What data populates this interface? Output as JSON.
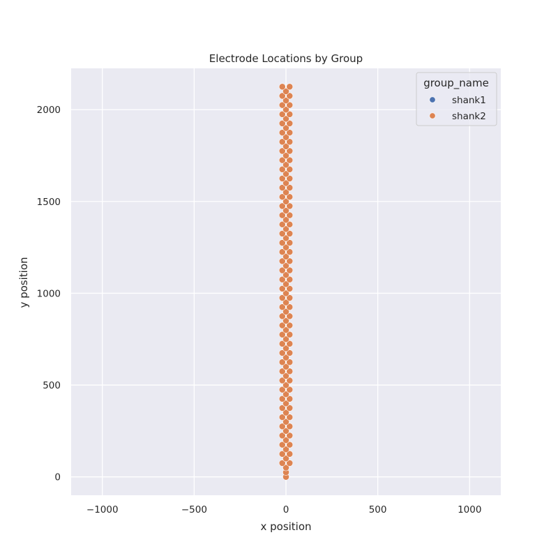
{
  "chart_data": {
    "type": "scatter",
    "title": "Electrode Locations by Group",
    "xlabel": "x position",
    "ylabel": "y position",
    "xlim": [
      -1170,
      1170
    ],
    "ylim": [
      -100,
      2225
    ],
    "xticks": [
      -1000,
      -500,
      0,
      500,
      1000
    ],
    "xtick_labels": [
      "−1000",
      "−500",
      "0",
      "500",
      "1000"
    ],
    "yticks": [
      0,
      500,
      1000,
      1500,
      2000
    ],
    "ytick_labels": [
      "0",
      "500",
      "1000",
      "1500",
      "2000"
    ],
    "grid": true,
    "background": "#eaeaf2",
    "legend": {
      "title": "group_name",
      "placement": "top-right",
      "entries": [
        {
          "label": "shank1",
          "color": "#4c72b0"
        },
        {
          "label": "shank2",
          "color": "#dd8452"
        }
      ]
    },
    "series": [
      {
        "name": "shank1",
        "color": "#4c72b0",
        "points": []
      },
      {
        "name": "shank2",
        "color": "#dd8452",
        "points": [
          [
            0,
            0
          ],
          [
            0,
            25
          ],
          [
            0,
            50
          ],
          [
            -20,
            75
          ],
          [
            20,
            75
          ],
          [
            0,
            100
          ],
          [
            -20,
            125
          ],
          [
            20,
            125
          ],
          [
            0,
            150
          ],
          [
            -20,
            175
          ],
          [
            20,
            175
          ],
          [
            0,
            200
          ],
          [
            -20,
            225
          ],
          [
            20,
            225
          ],
          [
            0,
            250
          ],
          [
            -20,
            275
          ],
          [
            20,
            275
          ],
          [
            0,
            300
          ],
          [
            -20,
            325
          ],
          [
            20,
            325
          ],
          [
            0,
            350
          ],
          [
            -20,
            375
          ],
          [
            20,
            375
          ],
          [
            0,
            400
          ],
          [
            -20,
            425
          ],
          [
            20,
            425
          ],
          [
            0,
            450
          ],
          [
            -20,
            475
          ],
          [
            20,
            475
          ],
          [
            0,
            500
          ],
          [
            -20,
            525
          ],
          [
            20,
            525
          ],
          [
            0,
            550
          ],
          [
            -20,
            575
          ],
          [
            20,
            575
          ],
          [
            0,
            600
          ],
          [
            -20,
            625
          ],
          [
            20,
            625
          ],
          [
            0,
            650
          ],
          [
            -20,
            675
          ],
          [
            20,
            675
          ],
          [
            0,
            700
          ],
          [
            -20,
            725
          ],
          [
            20,
            725
          ],
          [
            0,
            750
          ],
          [
            -20,
            775
          ],
          [
            20,
            775
          ],
          [
            0,
            800
          ],
          [
            -20,
            825
          ],
          [
            20,
            825
          ],
          [
            0,
            850
          ],
          [
            -20,
            875
          ],
          [
            20,
            875
          ],
          [
            0,
            900
          ],
          [
            -20,
            925
          ],
          [
            20,
            925
          ],
          [
            0,
            950
          ],
          [
            -20,
            975
          ],
          [
            20,
            975
          ],
          [
            0,
            1000
          ],
          [
            -20,
            1025
          ],
          [
            20,
            1025
          ],
          [
            0,
            1050
          ],
          [
            -20,
            1075
          ],
          [
            20,
            1075
          ],
          [
            0,
            1100
          ],
          [
            -20,
            1125
          ],
          [
            20,
            1125
          ],
          [
            0,
            1150
          ],
          [
            -20,
            1175
          ],
          [
            20,
            1175
          ],
          [
            0,
            1200
          ],
          [
            -20,
            1225
          ],
          [
            20,
            1225
          ],
          [
            0,
            1250
          ],
          [
            -20,
            1275
          ],
          [
            20,
            1275
          ],
          [
            0,
            1300
          ],
          [
            -20,
            1325
          ],
          [
            20,
            1325
          ],
          [
            0,
            1350
          ],
          [
            -20,
            1375
          ],
          [
            20,
            1375
          ],
          [
            0,
            1400
          ],
          [
            -20,
            1425
          ],
          [
            20,
            1425
          ],
          [
            0,
            1450
          ],
          [
            -20,
            1475
          ],
          [
            20,
            1475
          ],
          [
            0,
            1500
          ],
          [
            -20,
            1525
          ],
          [
            20,
            1525
          ],
          [
            0,
            1550
          ],
          [
            -20,
            1575
          ],
          [
            20,
            1575
          ],
          [
            0,
            1600
          ],
          [
            -20,
            1625
          ],
          [
            20,
            1625
          ],
          [
            0,
            1650
          ],
          [
            -20,
            1675
          ],
          [
            20,
            1675
          ],
          [
            0,
            1700
          ],
          [
            -20,
            1725
          ],
          [
            20,
            1725
          ],
          [
            0,
            1750
          ],
          [
            -20,
            1775
          ],
          [
            20,
            1775
          ],
          [
            0,
            1800
          ],
          [
            -20,
            1825
          ],
          [
            20,
            1825
          ],
          [
            0,
            1850
          ],
          [
            -20,
            1875
          ],
          [
            20,
            1875
          ],
          [
            0,
            1900
          ],
          [
            -20,
            1925
          ],
          [
            20,
            1925
          ],
          [
            0,
            1950
          ],
          [
            -20,
            1975
          ],
          [
            20,
            1975
          ],
          [
            0,
            2000
          ],
          [
            -20,
            2025
          ],
          [
            20,
            2025
          ],
          [
            0,
            2050
          ],
          [
            -20,
            2075
          ],
          [
            20,
            2075
          ],
          [
            0,
            2100
          ],
          [
            -20,
            2125
          ],
          [
            20,
            2125
          ]
        ]
      }
    ]
  }
}
